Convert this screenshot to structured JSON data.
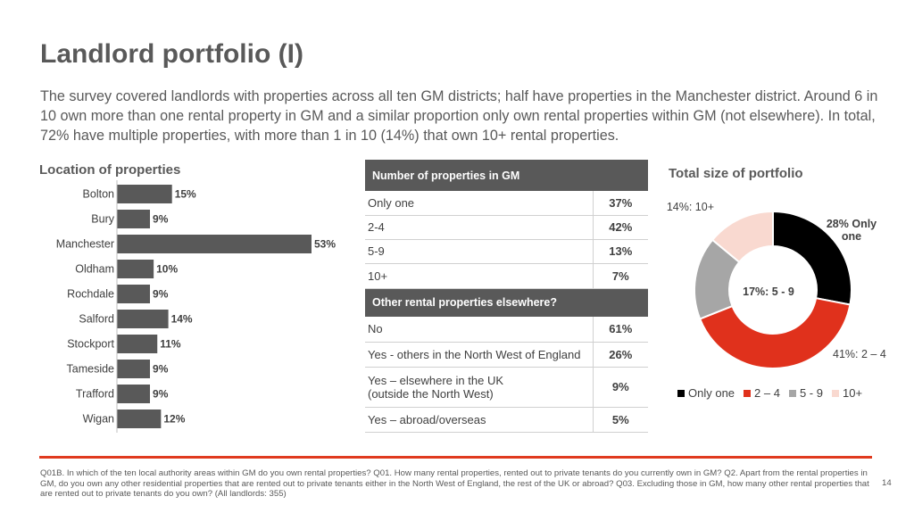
{
  "title": "Landlord portfolio (I)",
  "intro": "The survey covered landlords with properties across all ten GM districts; half have properties in the Manchester district. Around 6 in 10 own more than one rental property in GM and a similar proportion only own rental properties within GM (not elsewhere). In total, 72% have multiple properties, with more than 1 in 10 (14%) that own 10+ rental properties.",
  "table": {
    "header1": "Number of properties in GM",
    "rows1": [
      {
        "label": "Only one",
        "value": "37%"
      },
      {
        "label": "2-4",
        "value": "42%"
      },
      {
        "label": "5-9",
        "value": "13%"
      },
      {
        "label": "10+",
        "value": "7%"
      }
    ],
    "header2": "Other rental properties elsewhere?",
    "rows2": [
      {
        "label": "No",
        "value": "61%"
      },
      {
        "label": "Yes - others in the North West of England",
        "value": "26%"
      },
      {
        "label": "Yes – elsewhere in the UK",
        "label2": "(outside the North West)",
        "value": "9%"
      },
      {
        "label": "Yes – abroad/overseas",
        "value": "5%"
      }
    ]
  },
  "footnote": "Q01B. In which of the ten local authority areas within GM do you own rental properties? Q01. How many rental properties, rented out to private tenants do you currently own in GM? Q2. Apart from the rental properties in GM, do you own any other residential properties that are rented out to private tenants either in the North West of England, the rest of the UK or abroad? Q03. Excluding those in GM, how many other rental properties that are rented out to private tenants do you own? (All landlords: 355)",
  "page_number": "14",
  "chart_data": [
    {
      "type": "bar",
      "orientation": "horizontal",
      "title": "Location of properties",
      "categories": [
        "Bolton",
        "Bury",
        "Manchester",
        "Oldham",
        "Rochdale",
        "Salford",
        "Stockport",
        "Tameside",
        "Trafford",
        "Wigan"
      ],
      "values": [
        15,
        9,
        53,
        10,
        9,
        14,
        11,
        9,
        9,
        12
      ],
      "data_labels": [
        "15%",
        "9%",
        "53%",
        "10%",
        "9%",
        "14%",
        "11%",
        "9%",
        "9%",
        "12%"
      ],
      "color": "#595959",
      "grid": false
    },
    {
      "type": "pie",
      "donut": true,
      "title": "Total size of portfolio",
      "categories": [
        "Only one",
        "2 – 4",
        "5 - 9",
        "10+"
      ],
      "legend_labels": [
        "Only one",
        "2 – 4",
        "5 - 9",
        "10+"
      ],
      "values": [
        28,
        41,
        17,
        14
      ],
      "data_labels": [
        "28% Only one",
        "41%: 2 – 4",
        "17%: 5 - 9",
        "14%: 10+"
      ],
      "colors": [
        "#000000",
        "#e0311c",
        "#a6a6a6",
        "#f9d9d0"
      ],
      "legend": "bottom"
    }
  ]
}
